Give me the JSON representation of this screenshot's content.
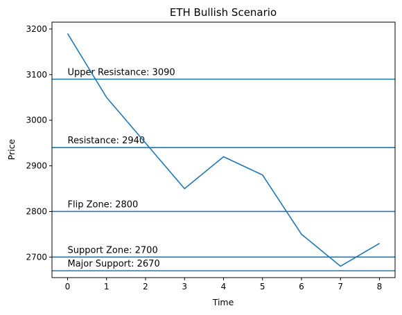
{
  "chart_data": {
    "type": "line",
    "title": "ETH Bullish Scenario",
    "xlabel": "Time",
    "ylabel": "Price",
    "xlim": [
      -0.4,
      8.4
    ],
    "ylim": [
      2655,
      3215
    ],
    "xticks": [
      0,
      1,
      2,
      3,
      4,
      5,
      6,
      7,
      8
    ],
    "yticks": [
      2700,
      2800,
      2900,
      3000,
      3100,
      3200
    ],
    "grid": false,
    "series": [
      {
        "x": [
          0,
          1,
          2,
          3,
          4,
          5,
          6,
          7,
          8
        ],
        "values": [
          3190,
          3050,
          2950,
          2850,
          2920,
          2880,
          2750,
          2680,
          2730
        ],
        "color": "#1f77b4"
      }
    ],
    "levels": [
      {
        "label": "Upper Resistance: 3090",
        "value": 3090,
        "color": "#1f77b4"
      },
      {
        "label": "Resistance: 2940",
        "value": 2940,
        "color": "#1f77b4"
      },
      {
        "label": "Flip Zone: 2800",
        "value": 2800,
        "color": "#1f77b4"
      },
      {
        "label": "Support Zone: 2700",
        "value": 2700,
        "color": "#1f77b4"
      },
      {
        "label": "Major Support: 2670",
        "value": 2670,
        "color": "#1f77b4"
      }
    ]
  }
}
